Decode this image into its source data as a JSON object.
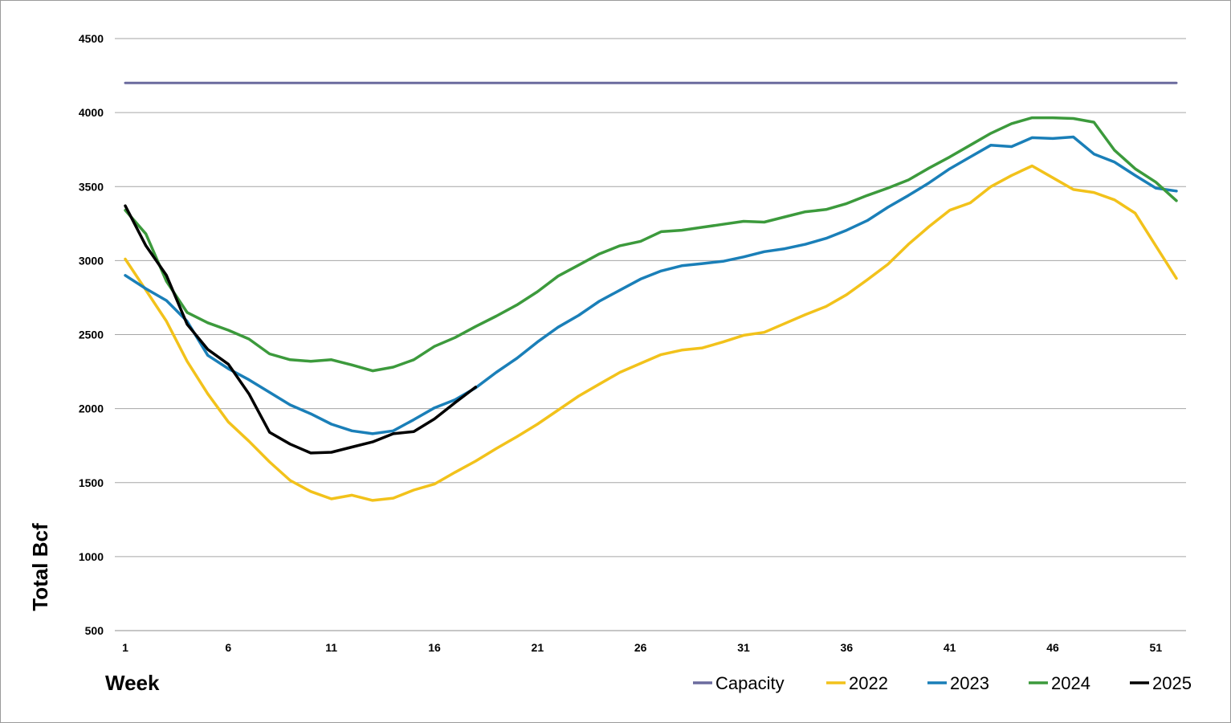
{
  "chart_data": {
    "type": "line",
    "xlabel": "Week",
    "ylabel": "Total Bcf",
    "xlim": [
      1,
      52
    ],
    "ylim": [
      500,
      4500
    ],
    "x_ticks": [
      1,
      6,
      11,
      16,
      21,
      26,
      31,
      36,
      41,
      46,
      51
    ],
    "y_ticks": [
      500,
      1000,
      1500,
      2000,
      2500,
      3000,
      3500,
      4000,
      4500
    ],
    "grid": "horizontal",
    "legend_position": "bottom-right",
    "x": [
      1,
      2,
      3,
      4,
      5,
      6,
      7,
      8,
      9,
      10,
      11,
      12,
      13,
      14,
      15,
      16,
      17,
      18,
      19,
      20,
      21,
      22,
      23,
      24,
      25,
      26,
      27,
      28,
      29,
      30,
      31,
      32,
      33,
      34,
      35,
      36,
      37,
      38,
      39,
      40,
      41,
      42,
      43,
      44,
      45,
      46,
      47,
      48,
      49,
      50,
      51,
      52
    ],
    "series": [
      {
        "name": "Capacity",
        "color": "#6b6b9e",
        "values": [
          4200,
          4200,
          4200,
          4200,
          4200,
          4200,
          4200,
          4200,
          4200,
          4200,
          4200,
          4200,
          4200,
          4200,
          4200,
          4200,
          4200,
          4200,
          4200,
          4200,
          4200,
          4200,
          4200,
          4200,
          4200,
          4200,
          4200,
          4200,
          4200,
          4200,
          4200,
          4200,
          4200,
          4200,
          4200,
          4200,
          4200,
          4200,
          4200,
          4200,
          4200,
          4200,
          4200,
          4200,
          4200,
          4200,
          4200,
          4200,
          4200,
          4200,
          4200,
          4200
        ]
      },
      {
        "name": "2022",
        "color": "#f2c21b",
        "values": [
          3010,
          2800,
          2590,
          2320,
          2100,
          1910,
          1780,
          1640,
          1515,
          1440,
          1390,
          1415,
          1380,
          1395,
          1450,
          1490,
          1570,
          1645,
          1730,
          1810,
          1895,
          1990,
          2085,
          2165,
          2245,
          2305,
          2365,
          2395,
          2410,
          2450,
          2495,
          2515,
          2575,
          2635,
          2690,
          2770,
          2870,
          2975,
          3110,
          3230,
          3340,
          3390,
          3500,
          3575,
          3640,
          3560,
          3480,
          3460,
          3410,
          3320,
          3100,
          2880
        ]
      },
      {
        "name": "2023",
        "color": "#1a7fb8",
        "values": [
          2900,
          2810,
          2730,
          2590,
          2360,
          2270,
          2195,
          2110,
          2025,
          1965,
          1895,
          1850,
          1830,
          1850,
          1925,
          2005,
          2060,
          2140,
          2245,
          2340,
          2450,
          2550,
          2630,
          2725,
          2800,
          2875,
          2930,
          2965,
          2980,
          2995,
          3025,
          3060,
          3080,
          3110,
          3150,
          3205,
          3270,
          3360,
          3440,
          3525,
          3620,
          3700,
          3780,
          3770,
          3830,
          3825,
          3835,
          3720,
          3665,
          3575,
          3490,
          3470
        ]
      },
      {
        "name": "2024",
        "color": "#3c9a3c",
        "values": [
          3340,
          3180,
          2860,
          2650,
          2580,
          2530,
          2470,
          2370,
          2330,
          2320,
          2330,
          2295,
          2255,
          2280,
          2330,
          2420,
          2480,
          2555,
          2625,
          2700,
          2790,
          2895,
          2970,
          3045,
          3100,
          3130,
          3195,
          3205,
          3225,
          3245,
          3265,
          3260,
          3295,
          3330,
          3345,
          3385,
          3440,
          3490,
          3545,
          3625,
          3700,
          3780,
          3860,
          3925,
          3965,
          3965,
          3960,
          3935,
          3745,
          3620,
          3530,
          3405
        ]
      },
      {
        "name": "2025",
        "color": "#000000",
        "values": [
          3370,
          3100,
          2900,
          2570,
          2400,
          2300,
          2100,
          1840,
          1760,
          1700,
          1705,
          1740,
          1775,
          1830,
          1845,
          1930,
          2040,
          2145,
          null,
          null,
          null,
          null,
          null,
          null,
          null,
          null,
          null,
          null,
          null,
          null,
          null,
          null,
          null,
          null,
          null,
          null,
          null,
          null,
          null,
          null,
          null,
          null,
          null,
          null,
          null,
          null,
          null,
          null,
          null,
          null,
          null,
          null
        ]
      }
    ]
  }
}
